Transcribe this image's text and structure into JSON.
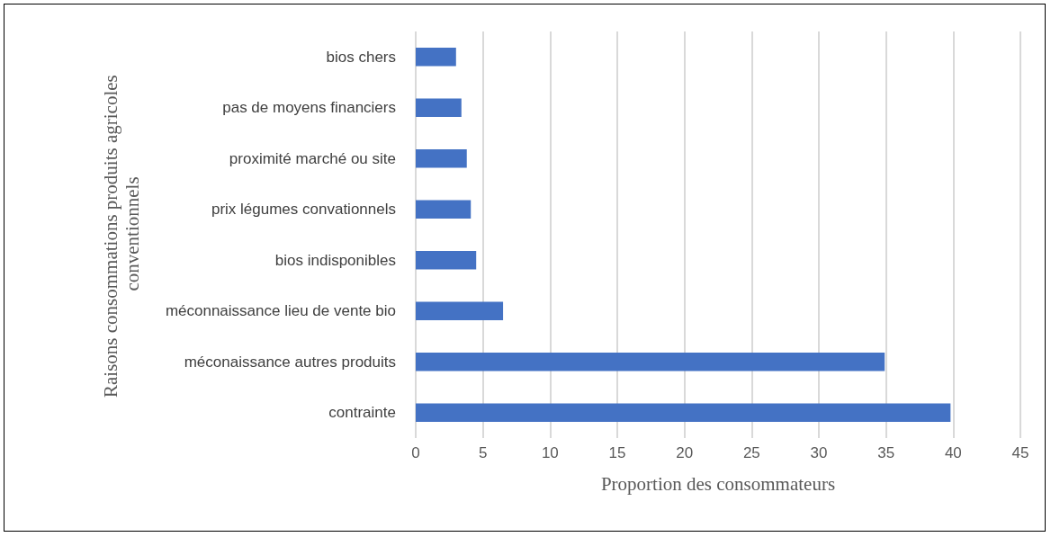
{
  "chart_data": {
    "type": "bar",
    "orientation": "horizontal",
    "xlabel": "Proportion des consommateurs",
    "ylabel": "Raisons consommations produits agricoles conventionnels",
    "categories": [
      "bios chers",
      "pas de moyens financiers",
      "proximité marché ou site",
      "prix légumes convationnels",
      "bios indisponibles",
      "méconnaissance lieu de vente bio",
      "méconaissance autres produits",
      "contrainte"
    ],
    "values": [
      3.0,
      3.4,
      3.8,
      4.1,
      4.5,
      6.5,
      34.9,
      39.8
    ],
    "color": "#4472c4",
    "xlim": [
      0,
      45
    ],
    "xticks": [
      0,
      5,
      10,
      15,
      20,
      25,
      30,
      35,
      40,
      45
    ],
    "grid": "x"
  }
}
